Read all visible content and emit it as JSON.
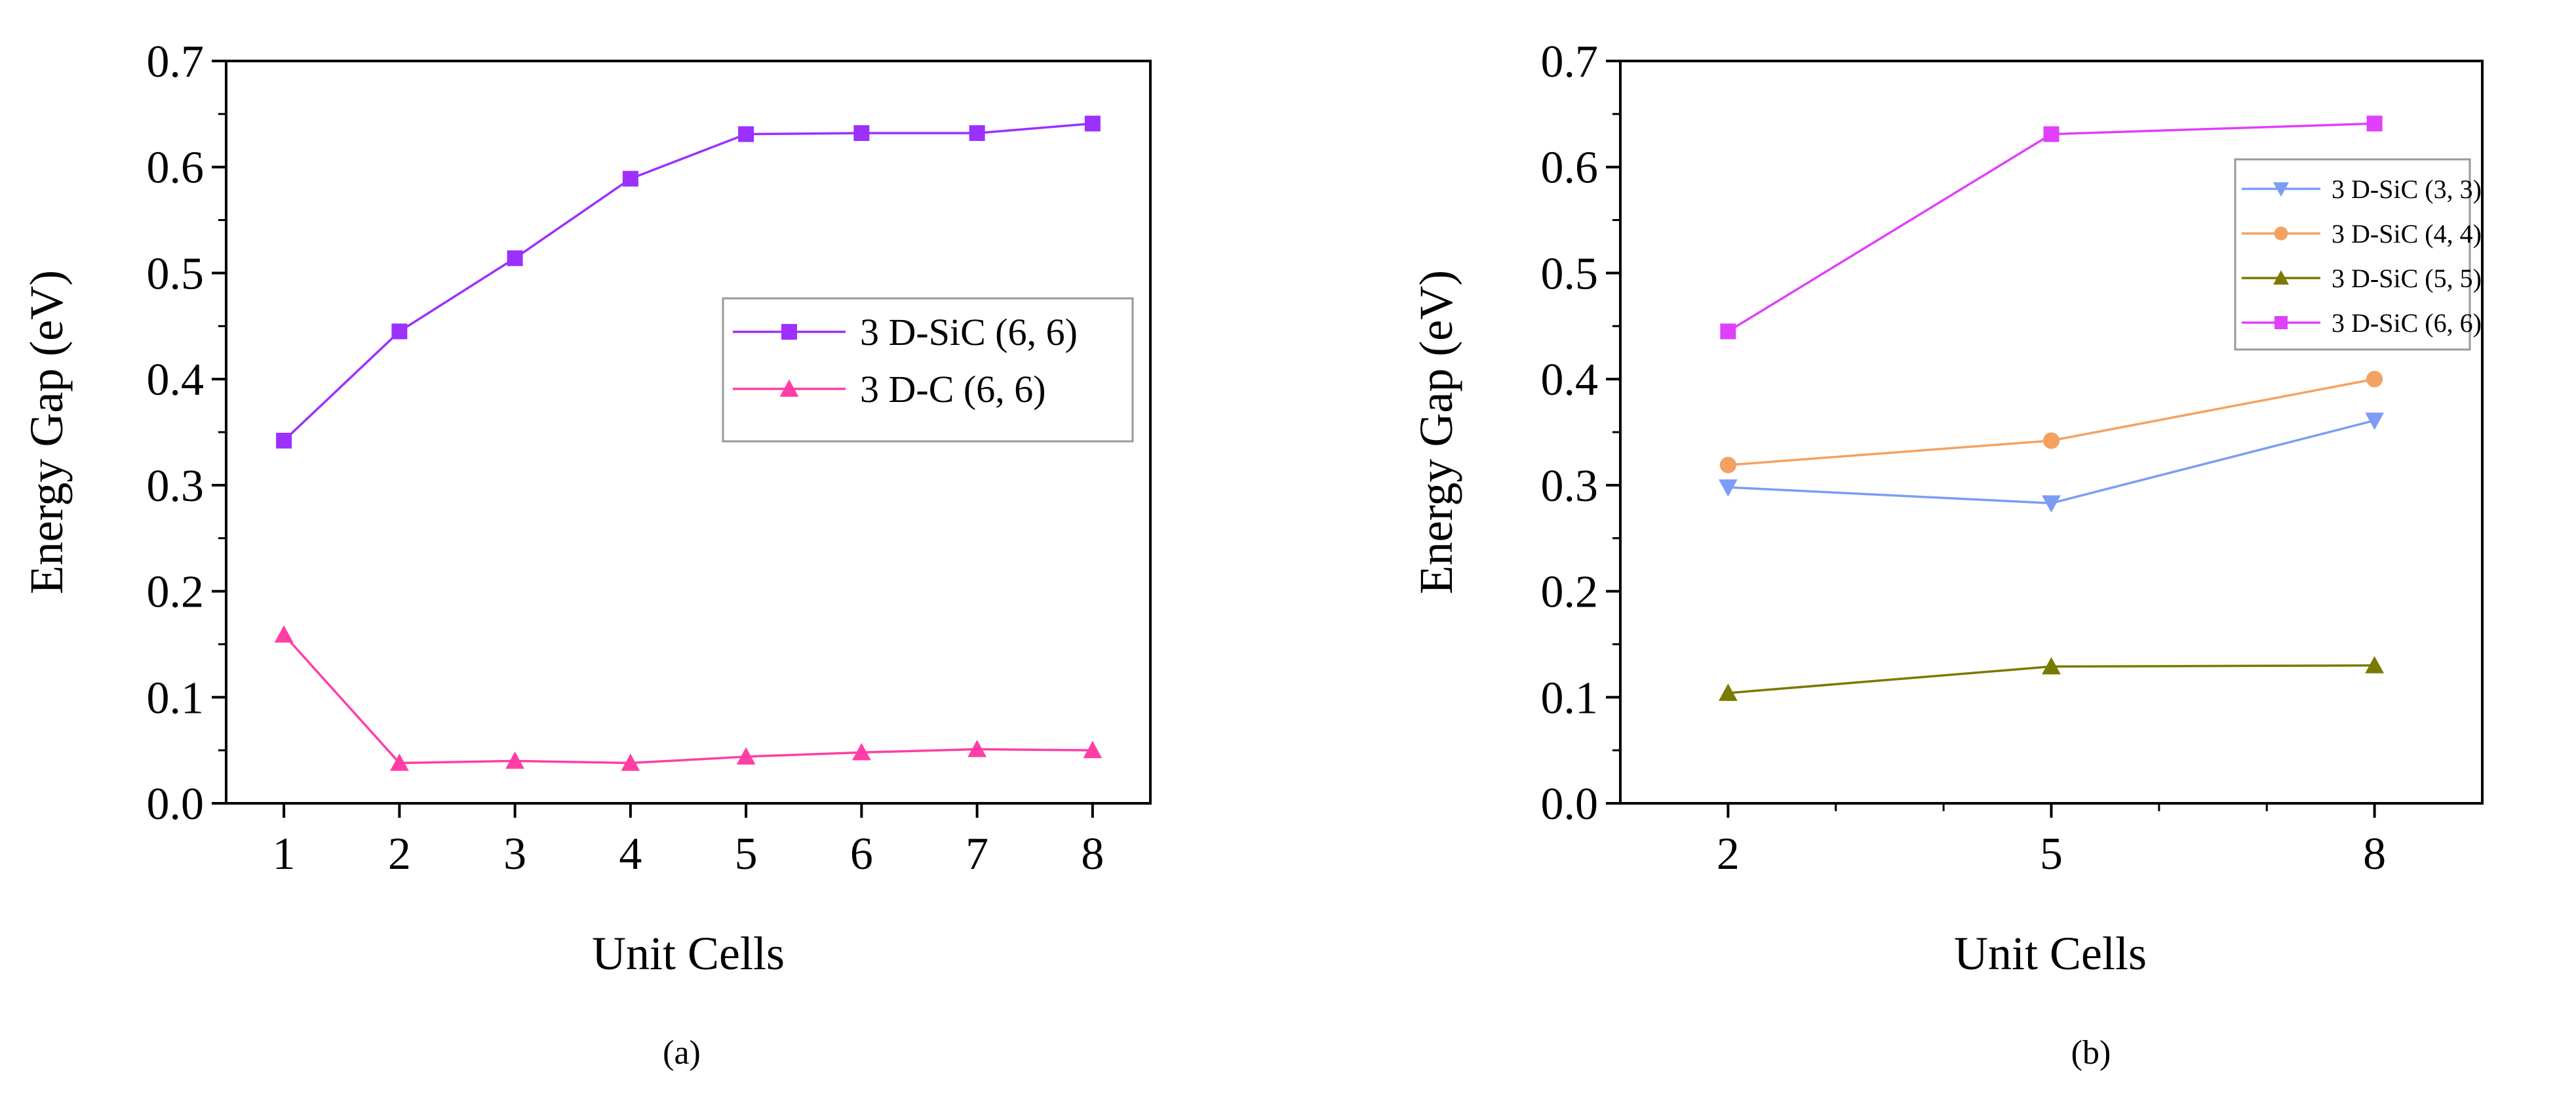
{
  "chart_data": [
    {
      "type": "line",
      "caption": "(a)",
      "xlabel": "Unit Cells",
      "ylabel": "Energy Gap (eV)",
      "xlim": [
        0.5,
        8.5
      ],
      "ylim": [
        0.0,
        0.7
      ],
      "x_ticks": [
        1,
        2,
        3,
        4,
        5,
        6,
        7,
        8
      ],
      "y_ticks": [
        "0.0",
        "0.1",
        "0.2",
        "0.3",
        "0.4",
        "0.5",
        "0.6",
        "0.7"
      ],
      "legend_position": "center-right",
      "series": [
        {
          "name": "3 D-SiC (6, 6)",
          "color": "#9B30FF",
          "marker": "square",
          "x": [
            1,
            2,
            3,
            4,
            5,
            6,
            7,
            8
          ],
          "values": [
            0.342,
            0.445,
            0.514,
            0.589,
            0.631,
            0.632,
            0.632,
            0.641
          ]
        },
        {
          "name": "3 D-C (6, 6)",
          "color": "#FF3EA5",
          "marker": "triangle-up",
          "x": [
            1,
            2,
            3,
            4,
            5,
            6,
            7,
            8
          ],
          "values": [
            0.159,
            0.038,
            0.04,
            0.038,
            0.044,
            0.048,
            0.051,
            0.05
          ]
        }
      ]
    },
    {
      "type": "line",
      "caption": "(b)",
      "xlabel": "Unit Cells",
      "ylabel": "Energy Gap (eV)",
      "xlim": [
        1.0,
        9.0
      ],
      "ylim": [
        0.0,
        0.7
      ],
      "x_ticks": [
        2,
        5,
        8
      ],
      "y_ticks": [
        "0.0",
        "0.1",
        "0.2",
        "0.3",
        "0.4",
        "0.5",
        "0.6",
        "0.7"
      ],
      "legend_position": "top-right",
      "series": [
        {
          "name": "3 D-SiC (3, 3)",
          "color": "#7C9CF5",
          "marker": "triangle-down",
          "x": [
            2,
            5,
            8
          ],
          "values": [
            0.298,
            0.283,
            0.361
          ]
        },
        {
          "name": "3 D-SiC (4, 4)",
          "color": "#F4A261",
          "marker": "circle",
          "x": [
            2,
            5,
            8
          ],
          "values": [
            0.319,
            0.342,
            0.4
          ]
        },
        {
          "name": "3 D-SiC (5, 5)",
          "color": "#7A7A00",
          "marker": "triangle-up",
          "x": [
            2,
            5,
            8
          ],
          "values": [
            0.104,
            0.129,
            0.13
          ]
        },
        {
          "name": "3 D-SiC (6, 6)",
          "color": "#E040FB",
          "marker": "square",
          "x": [
            2,
            5,
            8
          ],
          "values": [
            0.445,
            0.631,
            0.641
          ]
        }
      ]
    }
  ]
}
